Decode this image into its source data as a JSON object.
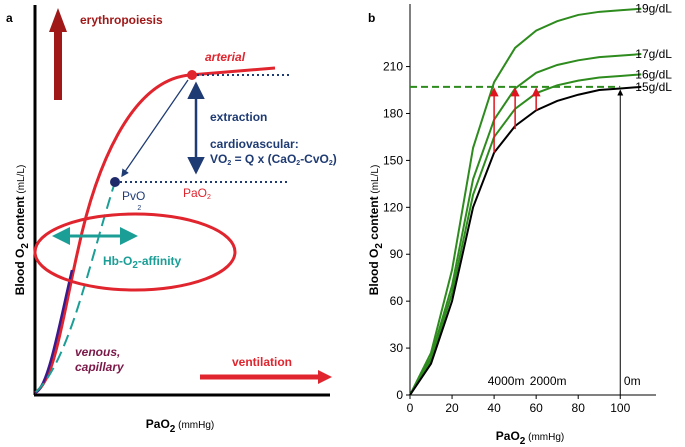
{
  "panel_a": {
    "panel_label": "a",
    "erythropoiesis": "erythropoiesis",
    "arterial": "arterial",
    "extraction": "extraction",
    "cardiovascular": "cardiovascular:",
    "formula": [
      "VO",
      "2",
      " = Q x (CaO",
      "2",
      "-CvO",
      "2",
      ")"
    ],
    "pvo": [
      "PvO",
      "2"
    ],
    "pao": [
      "PaO",
      "2"
    ],
    "affinity": [
      "Hb-O",
      "2",
      "-affinity"
    ],
    "venous": [
      "venous,",
      "capillary"
    ],
    "ventilation": "ventilation",
    "y_label": [
      "Blood O",
      "2",
      " content",
      " (mL/L)"
    ],
    "x_label": [
      "PaO",
      "2",
      " (mmHg)"
    ]
  },
  "chart_data": {
    "type": "line",
    "panel_label": "b",
    "x_label": [
      "PaO",
      "2",
      " (mmHg)"
    ],
    "y_label": [
      "Blood O",
      "2",
      " content",
      " (mL/L)"
    ],
    "x": [
      0,
      10,
      20,
      30,
      40,
      50,
      60,
      70,
      80,
      90,
      100,
      110
    ],
    "series": [
      {
        "name": "19g/dL",
        "color": "#2e8b1e",
        "values": [
          0,
          27,
          80,
          158,
          200,
          222,
          233,
          239,
          243,
          245,
          246,
          247
        ]
      },
      {
        "name": "17g/dL",
        "color": "#2e8b1e",
        "values": [
          0,
          24,
          70,
          138,
          176,
          196,
          206,
          211,
          214,
          216,
          217,
          218
        ]
      },
      {
        "name": "16g/dL",
        "color": "#2e8b1e",
        "values": [
          0,
          22,
          65,
          128,
          165,
          183,
          193,
          198,
          201,
          203,
          204,
          205
        ]
      },
      {
        "name": "15g/dL",
        "color": "#000000",
        "values": [
          0,
          20,
          60,
          120,
          155,
          172,
          182,
          188,
          192,
          195,
          196,
          197
        ]
      }
    ],
    "xlim": [
      0,
      117
    ],
    "ylim": [
      0,
      250
    ],
    "xticks": [
      0,
      20,
      40,
      60,
      80,
      100
    ],
    "yticks": [
      0,
      30,
      60,
      90,
      120,
      150,
      180,
      210
    ],
    "reference_line": {
      "y": 197,
      "x": [
        0,
        100
      ],
      "color": "#2e8b1e"
    },
    "arrows": [
      {
        "x": 40,
        "y": [
          155,
          197
        ],
        "color": "#e0141e",
        "label": "4000m"
      },
      {
        "x": 50,
        "y": [
          170,
          197
        ],
        "color": "#e0141e"
      },
      {
        "x": 60,
        "y": [
          182,
          197
        ],
        "color": "#e0141e",
        "label": "2000m"
      },
      {
        "x": 100,
        "y": [
          0,
          196
        ],
        "color": "#000000",
        "label": "0m"
      }
    ]
  }
}
